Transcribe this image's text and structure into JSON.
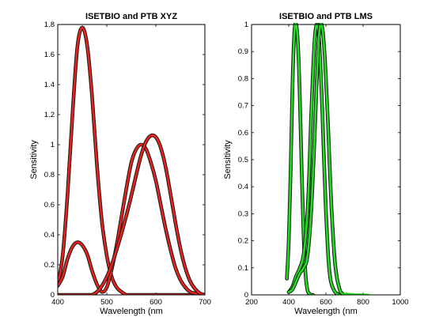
{
  "chart_data": [
    {
      "type": "line",
      "title": "ISETBIO and PTB XYZ",
      "xlabel": "Wavelength (nm",
      "ylabel": "Sensitivity",
      "xlim": [
        400,
        700
      ],
      "ylim": [
        0,
        1.8
      ],
      "xticks": [
        400,
        500,
        600,
        700
      ],
      "yticks": [
        0,
        0.2,
        0.4,
        0.6,
        0.8,
        1,
        1.2,
        1.4,
        1.6,
        1.8
      ],
      "xticklabels": [
        "400",
        "500",
        "600",
        "700"
      ],
      "yticklabels": [
        "0",
        "0.2",
        "0.4",
        "0.6",
        "0.8",
        "1",
        "1.2",
        "1.4",
        "1.6",
        "1.8"
      ],
      "grid": false,
      "series_color": "#e8221a",
      "outline_color": "#1a1a1a",
      "series": [
        {
          "x": [
            400,
            410,
            420,
            430,
            440,
            450,
            460,
            470,
            480,
            490,
            500,
            510,
            520,
            530,
            540,
            550,
            560,
            570,
            580,
            590,
            600,
            610,
            620,
            630,
            640,
            650,
            660,
            670,
            680,
            690,
            700
          ],
          "values": [
            0.07,
            0.26,
            0.67,
            1.2,
            1.65,
            1.78,
            1.66,
            1.32,
            0.86,
            0.49,
            0.26,
            0.12,
            0.05,
            0.02,
            0,
            0,
            0,
            0,
            0,
            0,
            0,
            0,
            0,
            0,
            0,
            0,
            0,
            0,
            0,
            0,
            0
          ]
        },
        {
          "x": [
            400,
            410,
            420,
            430,
            440,
            450,
            460,
            470,
            480,
            490,
            500,
            510,
            520,
            530,
            540,
            550,
            560,
            570,
            580,
            590,
            600,
            610,
            620,
            630,
            640,
            650,
            660,
            670,
            680,
            690,
            700
          ],
          "values": [
            0.06,
            0.12,
            0.24,
            0.32,
            0.35,
            0.33,
            0.27,
            0.16,
            0.07,
            0.02,
            0.05,
            0.17,
            0.33,
            0.52,
            0.71,
            0.88,
            0.97,
            1.0,
            0.97,
            0.88,
            0.76,
            0.6,
            0.44,
            0.3,
            0.18,
            0.1,
            0.05,
            0.02,
            0.01,
            0,
            0
          ]
        },
        {
          "x": [
            400,
            410,
            420,
            430,
            440,
            450,
            460,
            470,
            480,
            490,
            500,
            510,
            520,
            530,
            540,
            550,
            560,
            570,
            580,
            590,
            600,
            610,
            620,
            630,
            640,
            650,
            660,
            670,
            680,
            690,
            700
          ],
          "values": [
            0,
            0,
            0,
            0,
            0,
            0,
            0,
            0,
            0.02,
            0.06,
            0.12,
            0.2,
            0.3,
            0.41,
            0.53,
            0.66,
            0.8,
            0.93,
            1.02,
            1.06,
            1.05,
            0.98,
            0.85,
            0.67,
            0.48,
            0.31,
            0.18,
            0.09,
            0.04,
            0.01,
            0
          ]
        }
      ]
    },
    {
      "type": "line",
      "title": "ISETBIO and PTB LMS",
      "xlabel": "Wavelength (nm",
      "ylabel": "Sensitivity",
      "xlim": [
        200,
        1000
      ],
      "ylim": [
        0,
        1
      ],
      "xticks": [
        200,
        400,
        600,
        800,
        1000
      ],
      "yticks": [
        0,
        0.1,
        0.2,
        0.3,
        0.4,
        0.5,
        0.6,
        0.7,
        0.8,
        0.9,
        1
      ],
      "xticklabels": [
        "200",
        "400",
        "600",
        "800",
        "1000"
      ],
      "yticklabels": [
        "0",
        "0.1",
        "0.2",
        "0.3",
        "0.4",
        "0.5",
        "0.6",
        "0.7",
        "0.8",
        "0.9",
        "1"
      ],
      "grid": false,
      "series_color": "#22dd22",
      "outline_color": "#1a1a1a",
      "series": [
        {
          "x": [
            390,
            400,
            410,
            420,
            430,
            440,
            450,
            460,
            470,
            480,
            490,
            500,
            510,
            520,
            530
          ],
          "values": [
            0.06,
            0.2,
            0.45,
            0.77,
            0.97,
            1.0,
            0.92,
            0.72,
            0.45,
            0.22,
            0.08,
            0.02,
            0.005,
            0,
            0
          ]
        },
        {
          "x": [
            400,
            420,
            440,
            460,
            480,
            500,
            510,
            520,
            530,
            540,
            550,
            560,
            570,
            580,
            590,
            600,
            610,
            620,
            630,
            650,
            670,
            690
          ],
          "values": [
            0.01,
            0.03,
            0.07,
            0.1,
            0.15,
            0.3,
            0.45,
            0.65,
            0.82,
            0.95,
            1.0,
            0.97,
            0.86,
            0.69,
            0.49,
            0.31,
            0.17,
            0.08,
            0.04,
            0.01,
            0,
            0
          ]
        },
        {
          "x": [
            400,
            420,
            440,
            460,
            480,
            500,
            520,
            540,
            550,
            560,
            570,
            580,
            590,
            600,
            610,
            620,
            630,
            640,
            650,
            660,
            670,
            680,
            700
          ],
          "values": [
            0.01,
            0.02,
            0.05,
            0.08,
            0.1,
            0.14,
            0.3,
            0.6,
            0.78,
            0.93,
            1.0,
            0.99,
            0.92,
            0.8,
            0.65,
            0.48,
            0.32,
            0.2,
            0.11,
            0.06,
            0.03,
            0.01,
            0
          ]
        },
        {
          "x": [
            700,
            750,
            800,
            830
          ],
          "values": [
            0.005,
            0.002,
            0.001,
            0
          ],
          "outline": false
        }
      ]
    }
  ]
}
